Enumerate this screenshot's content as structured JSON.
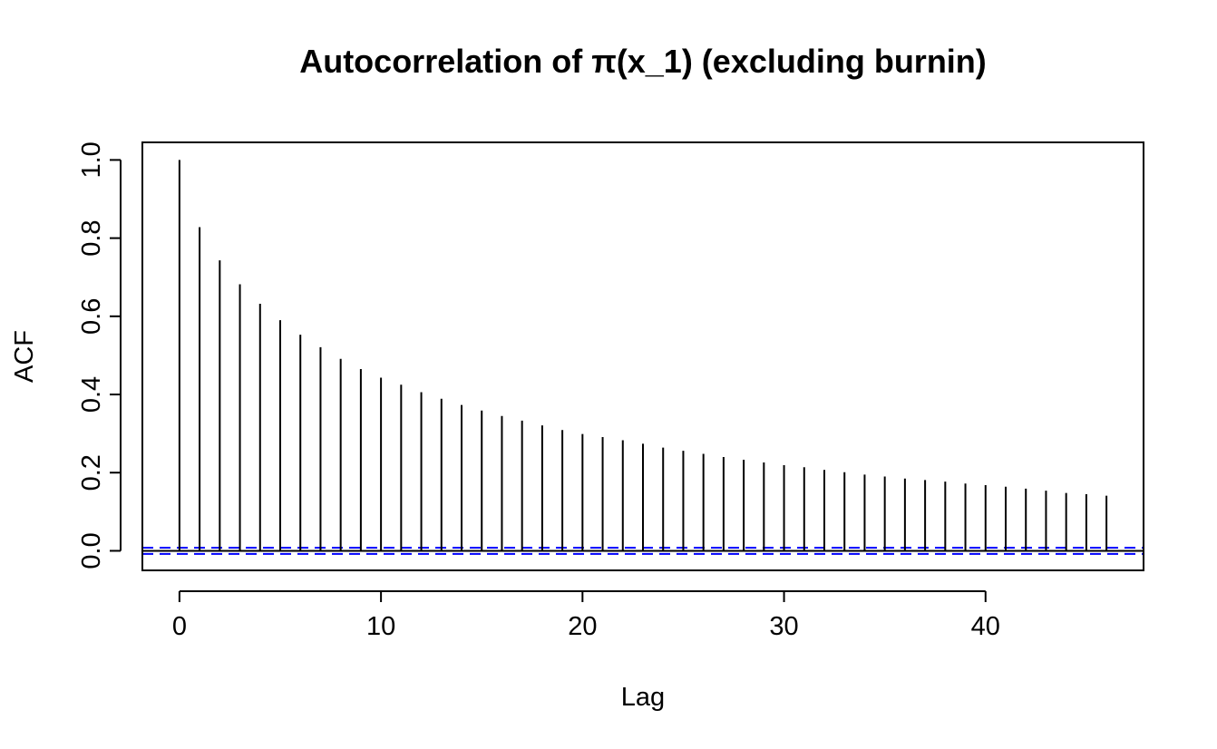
{
  "chart_data": {
    "type": "bar",
    "subtype": "acf-stem",
    "title": "Autocorrelation of π(x_1) (excluding burnin)",
    "xlabel": "Lag",
    "ylabel": "ACF",
    "xlim": [
      -1.84,
      47.84
    ],
    "ylim": [
      -0.05,
      1.045
    ],
    "x_ticks": [
      0,
      10,
      20,
      30,
      40
    ],
    "y_ticks": [
      0.0,
      0.2,
      0.4,
      0.6,
      0.8,
      1.0
    ],
    "x_tick_labels": [
      "0",
      "10",
      "20",
      "30",
      "40"
    ],
    "y_tick_labels": [
      "0.0",
      "0.2",
      "0.4",
      "0.6",
      "0.8",
      "1.0"
    ],
    "lags": [
      0,
      1,
      2,
      3,
      4,
      5,
      6,
      7,
      8,
      9,
      10,
      11,
      12,
      13,
      14,
      15,
      16,
      17,
      18,
      19,
      20,
      21,
      22,
      23,
      24,
      25,
      26,
      27,
      28,
      29,
      30,
      31,
      32,
      33,
      34,
      35,
      36,
      37,
      38,
      39,
      40,
      41,
      42,
      43,
      44,
      45,
      46
    ],
    "values": [
      1.0,
      0.828,
      0.743,
      0.682,
      0.632,
      0.59,
      0.553,
      0.521,
      0.491,
      0.465,
      0.443,
      0.425,
      0.406,
      0.389,
      0.373,
      0.359,
      0.345,
      0.333,
      0.321,
      0.309,
      0.299,
      0.291,
      0.283,
      0.274,
      0.264,
      0.256,
      0.248,
      0.24,
      0.233,
      0.226,
      0.219,
      0.214,
      0.207,
      0.201,
      0.195,
      0.19,
      0.185,
      0.181,
      0.177,
      0.172,
      0.168,
      0.164,
      0.159,
      0.154,
      0.148,
      0.145,
      0.141
    ],
    "confidence_band": [
      -0.008,
      0.008
    ],
    "colors": {
      "stems": "#000000",
      "zero_line": "#000000",
      "confidence_lines": "#0000ff"
    },
    "grid": false,
    "legend": "none"
  }
}
